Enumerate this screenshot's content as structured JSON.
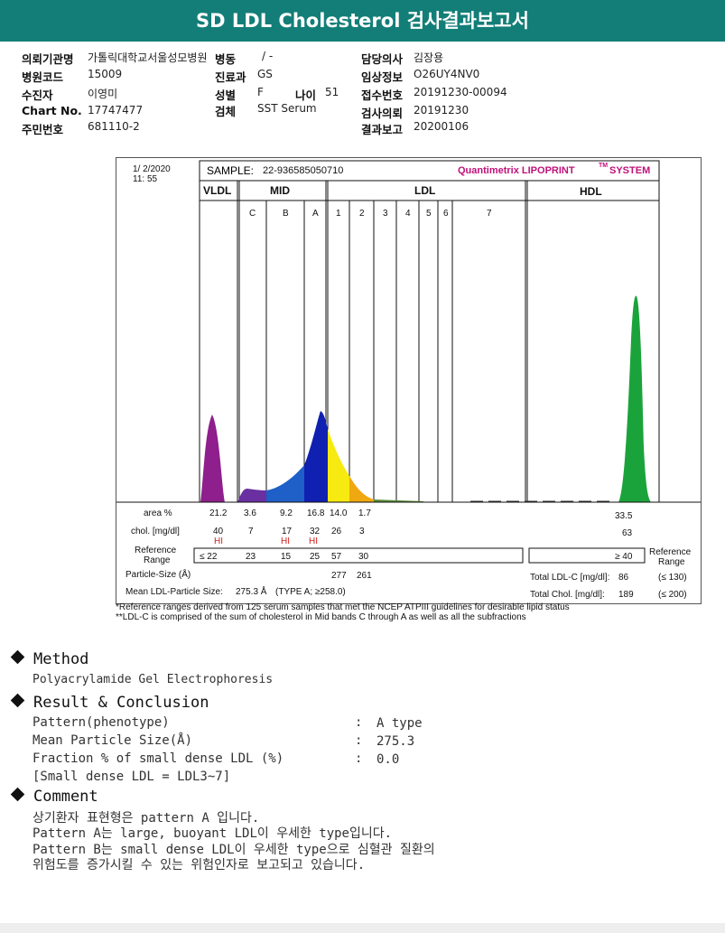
{
  "title": "SD LDL Cholesterol 검사결과보고서",
  "info": {
    "left": [
      {
        "k": "의뢰기관명",
        "v": "가톨릭대학교서울성모병원"
      },
      {
        "k": "병원코드",
        "v": "15009"
      },
      {
        "k": "수진자",
        "v": "이영미"
      },
      {
        "k": "Chart No.",
        "v": "17747477"
      },
      {
        "k": "주민번호",
        "v": "681110-2"
      }
    ],
    "mid": [
      {
        "k": "병동",
        "v": "/ -"
      },
      {
        "k": "진료과",
        "v": "GS"
      },
      {
        "k": "성별",
        "v": "F"
      },
      {
        "k": "검체",
        "v": "SST Serum"
      }
    ],
    "age_k": "나이",
    "age_v": "51",
    "right": [
      {
        "k": "담당의사",
        "v": "김장용"
      },
      {
        "k": "임상정보",
        "v": "O26UY4NV0"
      },
      {
        "k": "접수번호",
        "v": "20191230-00094"
      },
      {
        "k": "검사의뢰",
        "v": "20191230"
      },
      {
        "k": "결과보고",
        "v": "20200106"
      }
    ]
  },
  "report": {
    "date": "1/ 2/2020",
    "time": "11: 55",
    "sample_label": "SAMPLE:",
    "sample_id": "22-936585050710",
    "brand": "Quantimetrix LIPOPRINT",
    "brand_tm": "TM",
    "brand_sys": "SYSTEM",
    "bands_main": [
      "VLDL",
      "MID",
      "LDL",
      "HDL"
    ],
    "bands_sub": [
      "C",
      "B",
      "A",
      "1",
      "2",
      "3",
      "4",
      "5",
      "6",
      "7"
    ],
    "area_label": "area %",
    "area_values": [
      "21.2",
      "3.6",
      "9.2",
      "16.8",
      "14.0",
      "1.7",
      "33.5"
    ],
    "chol_label": "chol. [mg/dl]",
    "chol_values": [
      "40",
      "7",
      "17",
      "32",
      "26",
      "3",
      "63"
    ],
    "hi": [
      "HI",
      "HI",
      "HI"
    ],
    "ref_label_1": "Reference",
    "ref_label_2": "Range",
    "ref_values": [
      "≤ 22",
      "23",
      "15",
      "25",
      "57",
      "30"
    ],
    "ref_hdl": "≥ 40",
    "particle_label": "Particle-Size (Å)",
    "particle_values": [
      "277",
      "261"
    ],
    "mean_label": "Mean LDL-Particle Size:",
    "mean_value": "275.3 Å",
    "mean_type": "(TYPE A; ≥258.0)",
    "total_ldl_label": "Total LDL-C [mg/dl]:",
    "total_ldl_value": "86",
    "total_ldl_ref": "(≤ 130)",
    "total_chol_label": "Total Chol. [mg/dl]:",
    "total_chol_value": "189",
    "total_chol_ref": "(≤ 200)",
    "note1": "*Reference ranges derived from 125 serum samples that met the NCEP ATPIII guidelines for desirable lipid status",
    "note2": "**LDL-C is comprised of the sum of cholesterol in Mid bands C through A as well as all the subfractions",
    "colors": {
      "vldl": "#8e1f8c",
      "c": "#6a2fa0",
      "b": "#1e5fc8",
      "a": "#1020b0",
      "l1": "#f7ea10",
      "l2": "#f0a810",
      "hdl": "#1ba33b"
    }
  },
  "method": {
    "heading": "Method",
    "text": "Polyacrylamide Gel Electrophoresis"
  },
  "result": {
    "heading": "Result & Conclusion",
    "rows": [
      {
        "label": "Pattern(phenotype)",
        "colon": ":",
        "value": "A type"
      },
      {
        "label": "Mean Particle Size(Å)",
        "colon": ":",
        "value": "275.3"
      },
      {
        "label": "Fraction % of small dense LDL (%)",
        "colon": ":",
        "value": "0.0"
      }
    ],
    "note": "[Small dense LDL = LDL3~7]"
  },
  "comment": {
    "heading": "Comment",
    "lines": [
      "상기환자 표현형은 pattern A 입니다.",
      "Pattern A는 large, buoyant LDL이 우세한 type입니다.",
      "Pattern B는 small dense LDL이 우세한 type으로 심혈관 질환의",
      "위험도를 증가시킬 수 있는 위험인자로 보고되고 있습니다."
    ]
  }
}
